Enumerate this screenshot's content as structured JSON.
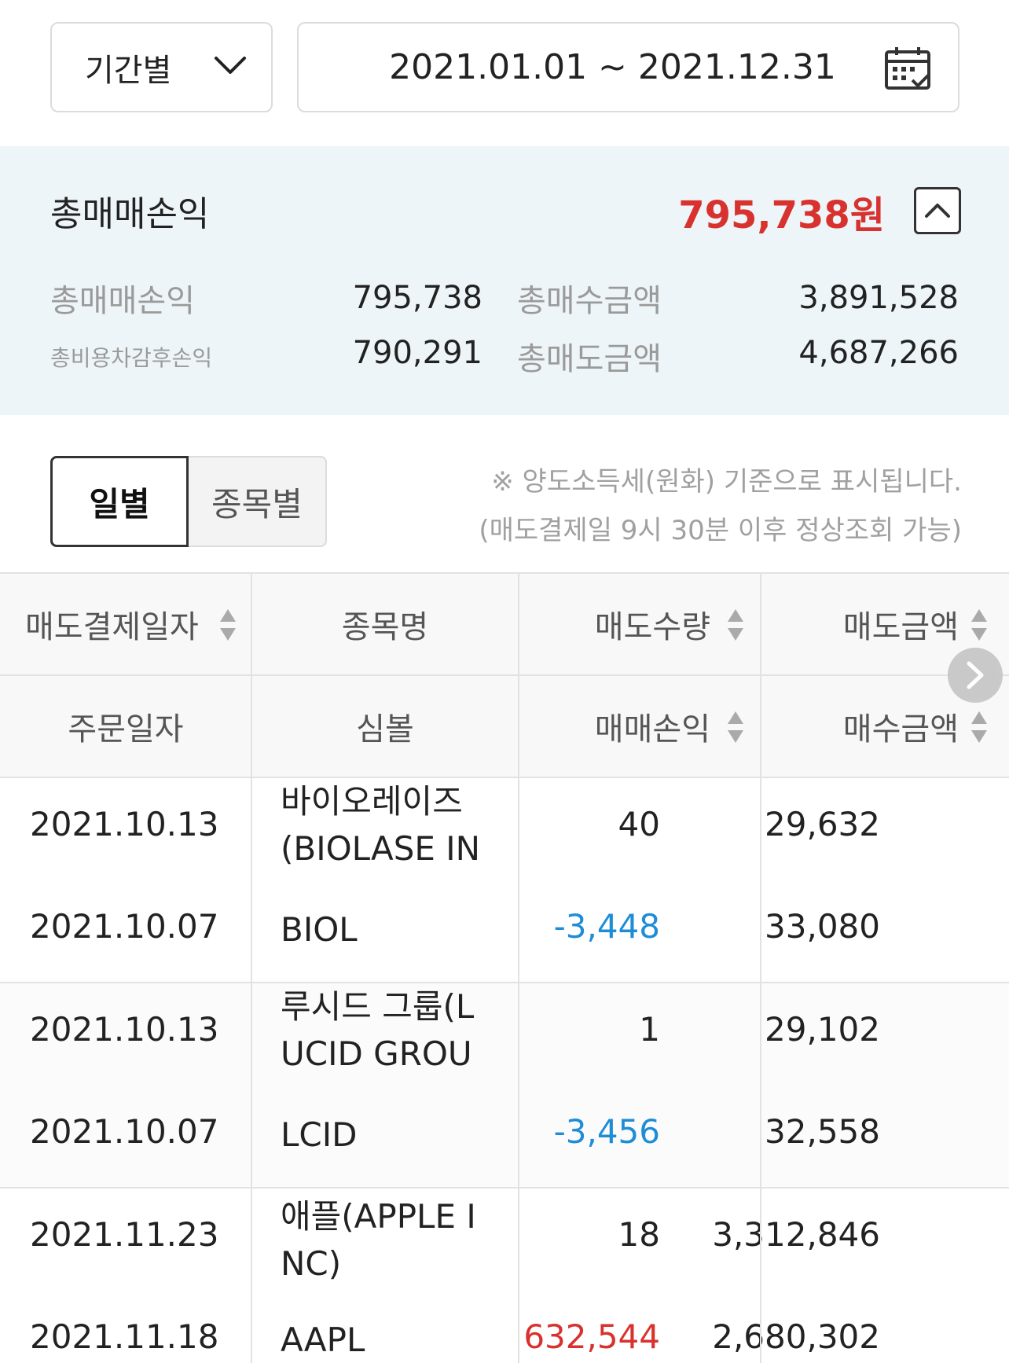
{
  "filter": {
    "period_label": "기간별",
    "date_range": "2021.01.01 ~ 2021.12.31"
  },
  "summary": {
    "total_label": "총매매손익",
    "total_value": "795,738원",
    "rows": [
      {
        "label": "총매매손익",
        "value": "795,738",
        "label2": "총매수금액",
        "value2": "3,891,528"
      },
      {
        "label": "총비용차감후손익",
        "value": "790,291",
        "label2": "총매도금액",
        "value2": "4,687,266"
      }
    ]
  },
  "tabs": [
    {
      "label": "일별",
      "active": true
    },
    {
      "label": "종목별",
      "active": false
    }
  ],
  "notice": {
    "line1": "※ 양도소득세(원화) 기준으로 표시됩니다.",
    "line2": "(매도결제일 9시 30분 이후 정상조회 가능)"
  },
  "table": {
    "header_row1": [
      "매도결제일자",
      "종목명",
      "매도수량",
      "매도금액"
    ],
    "header_row2": [
      "주문일자",
      "심볼",
      "매매손익",
      "매수금액"
    ],
    "rows": [
      {
        "settle_date": "2021.10.13",
        "order_date": "2021.10.07",
        "name_line1": "바이오레이즈",
        "name_line2": "(BIOLASE IN",
        "symbol": "BIOL",
        "qty": "40",
        "pnl": "-3,448",
        "sell_amount": "29,632",
        "buy_amount": "33,080"
      },
      {
        "settle_date": "2021.10.13",
        "order_date": "2021.10.07",
        "name_line1": "루시드 그룹(L",
        "name_line2": "UCID GROU",
        "symbol": "LCID",
        "qty": "1",
        "pnl": "-3,456",
        "sell_amount": "29,102",
        "buy_amount": "32,558"
      },
      {
        "settle_date": "2021.11.23",
        "order_date": "2021.11.18",
        "name_line1": "애플(APPLE I",
        "name_line2": "NC)",
        "symbol": "AAPL",
        "qty": "18",
        "pnl": "632,544",
        "sell_amount": "3,312,846",
        "buy_amount": "2,680,302"
      }
    ]
  },
  "colors": {
    "profit": "#d8322f",
    "loss": "#1f8dd6",
    "summary_bg": "#eef5f9"
  }
}
